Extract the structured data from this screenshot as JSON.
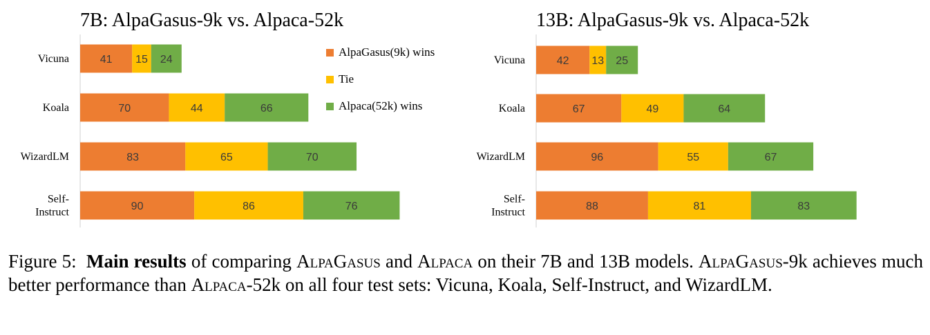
{
  "colors": {
    "alpagasus": "#ED7D31",
    "tie": "#FFC000",
    "alpaca": "#70AD47",
    "axis": "#d0d0d0"
  },
  "legend": {
    "items": [
      {
        "label": "AlpaGasus(9k) wins",
        "color": "#ED7D31"
      },
      {
        "label": "Tie",
        "color": "#FFC000"
      },
      {
        "label": "Alpaca(52k) wins",
        "color": "#70AD47"
      }
    ]
  },
  "chart_data": [
    {
      "type": "bar",
      "orientation": "horizontal",
      "stacked": true,
      "title": "7B: AlpaGasus-9k vs. Alpaca-52k",
      "categories": [
        "Vicuna",
        "Koala",
        "WizardLM",
        "Self-\nInstruct"
      ],
      "series": [
        {
          "name": "AlpaGasus(9k) wins",
          "values": [
            41,
            70,
            83,
            90
          ]
        },
        {
          "name": "Tie",
          "values": [
            15,
            44,
            65,
            86
          ]
        },
        {
          "name": "Alpaca(52k) wins",
          "values": [
            24,
            66,
            70,
            76
          ]
        }
      ],
      "legend_position": "right"
    },
    {
      "type": "bar",
      "orientation": "horizontal",
      "stacked": true,
      "title": "13B: AlpaGasus-9k vs. Alpaca-52k",
      "categories": [
        "Vicuna",
        "Koala",
        "WizardLM",
        "Self-\nInstruct"
      ],
      "series": [
        {
          "name": "AlpaGasus(9k) wins",
          "values": [
            42,
            67,
            96,
            88
          ]
        },
        {
          "name": "Tie",
          "values": [
            13,
            49,
            55,
            81
          ]
        },
        {
          "name": "Alpaca(52k) wins",
          "values": [
            25,
            64,
            67,
            83
          ]
        }
      ]
    }
  ],
  "caption": {
    "label": "Figure 5:",
    "bold": "Main results",
    "text_1": " of comparing ",
    "name_1": "AlpaGasus",
    "text_2": " and ",
    "name_2": "Alpaca",
    "text_3": " on their 7B and 13B models. ",
    "name_3": "AlpaGasus",
    "text_4": "-9k achieves much better performance than ",
    "name_4": "Alpaca",
    "text_5": "-52k on all four test sets: Vicuna, Koala, Self-Instruct, and WizardLM."
  }
}
